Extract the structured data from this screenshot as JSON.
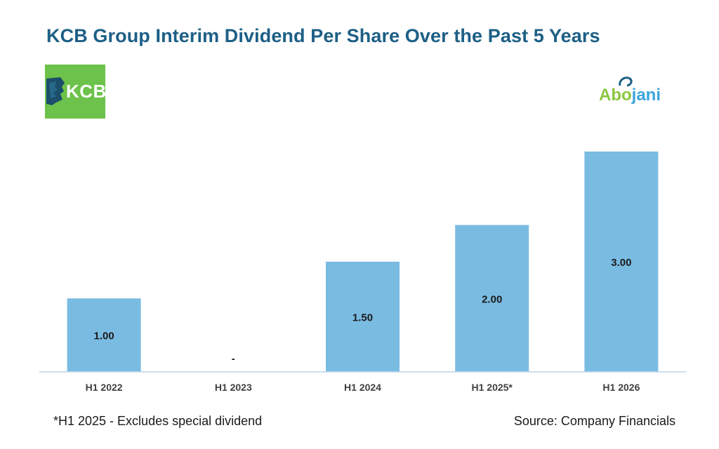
{
  "chart_data": {
    "type": "bar",
    "title": "KCB Group Interim Dividend Per Share Over the Past 5 Years",
    "categories": [
      "H1 2022",
      "H1 2023",
      "H1 2024",
      "H1 2025*",
      "H1 2026"
    ],
    "values": [
      1.0,
      0,
      1.5,
      2.0,
      3.0
    ],
    "data_labels": [
      "1.00",
      "-",
      "1.50",
      "2.00",
      "3.00"
    ],
    "xlabel": "",
    "ylabel": "",
    "ylim": [
      0,
      3.0
    ],
    "grid": false,
    "bar_color": "#7abbe2",
    "axis_color": "#bcd5e6"
  },
  "logos": {
    "kcb_text": "KCB",
    "abojani_abo": "Abo",
    "abojani_jani": "jani",
    "kcb_color": "#6cc24a"
  },
  "footnote": "*H1 2025 - Excludes special dividend",
  "source": "Source: Company Financials"
}
